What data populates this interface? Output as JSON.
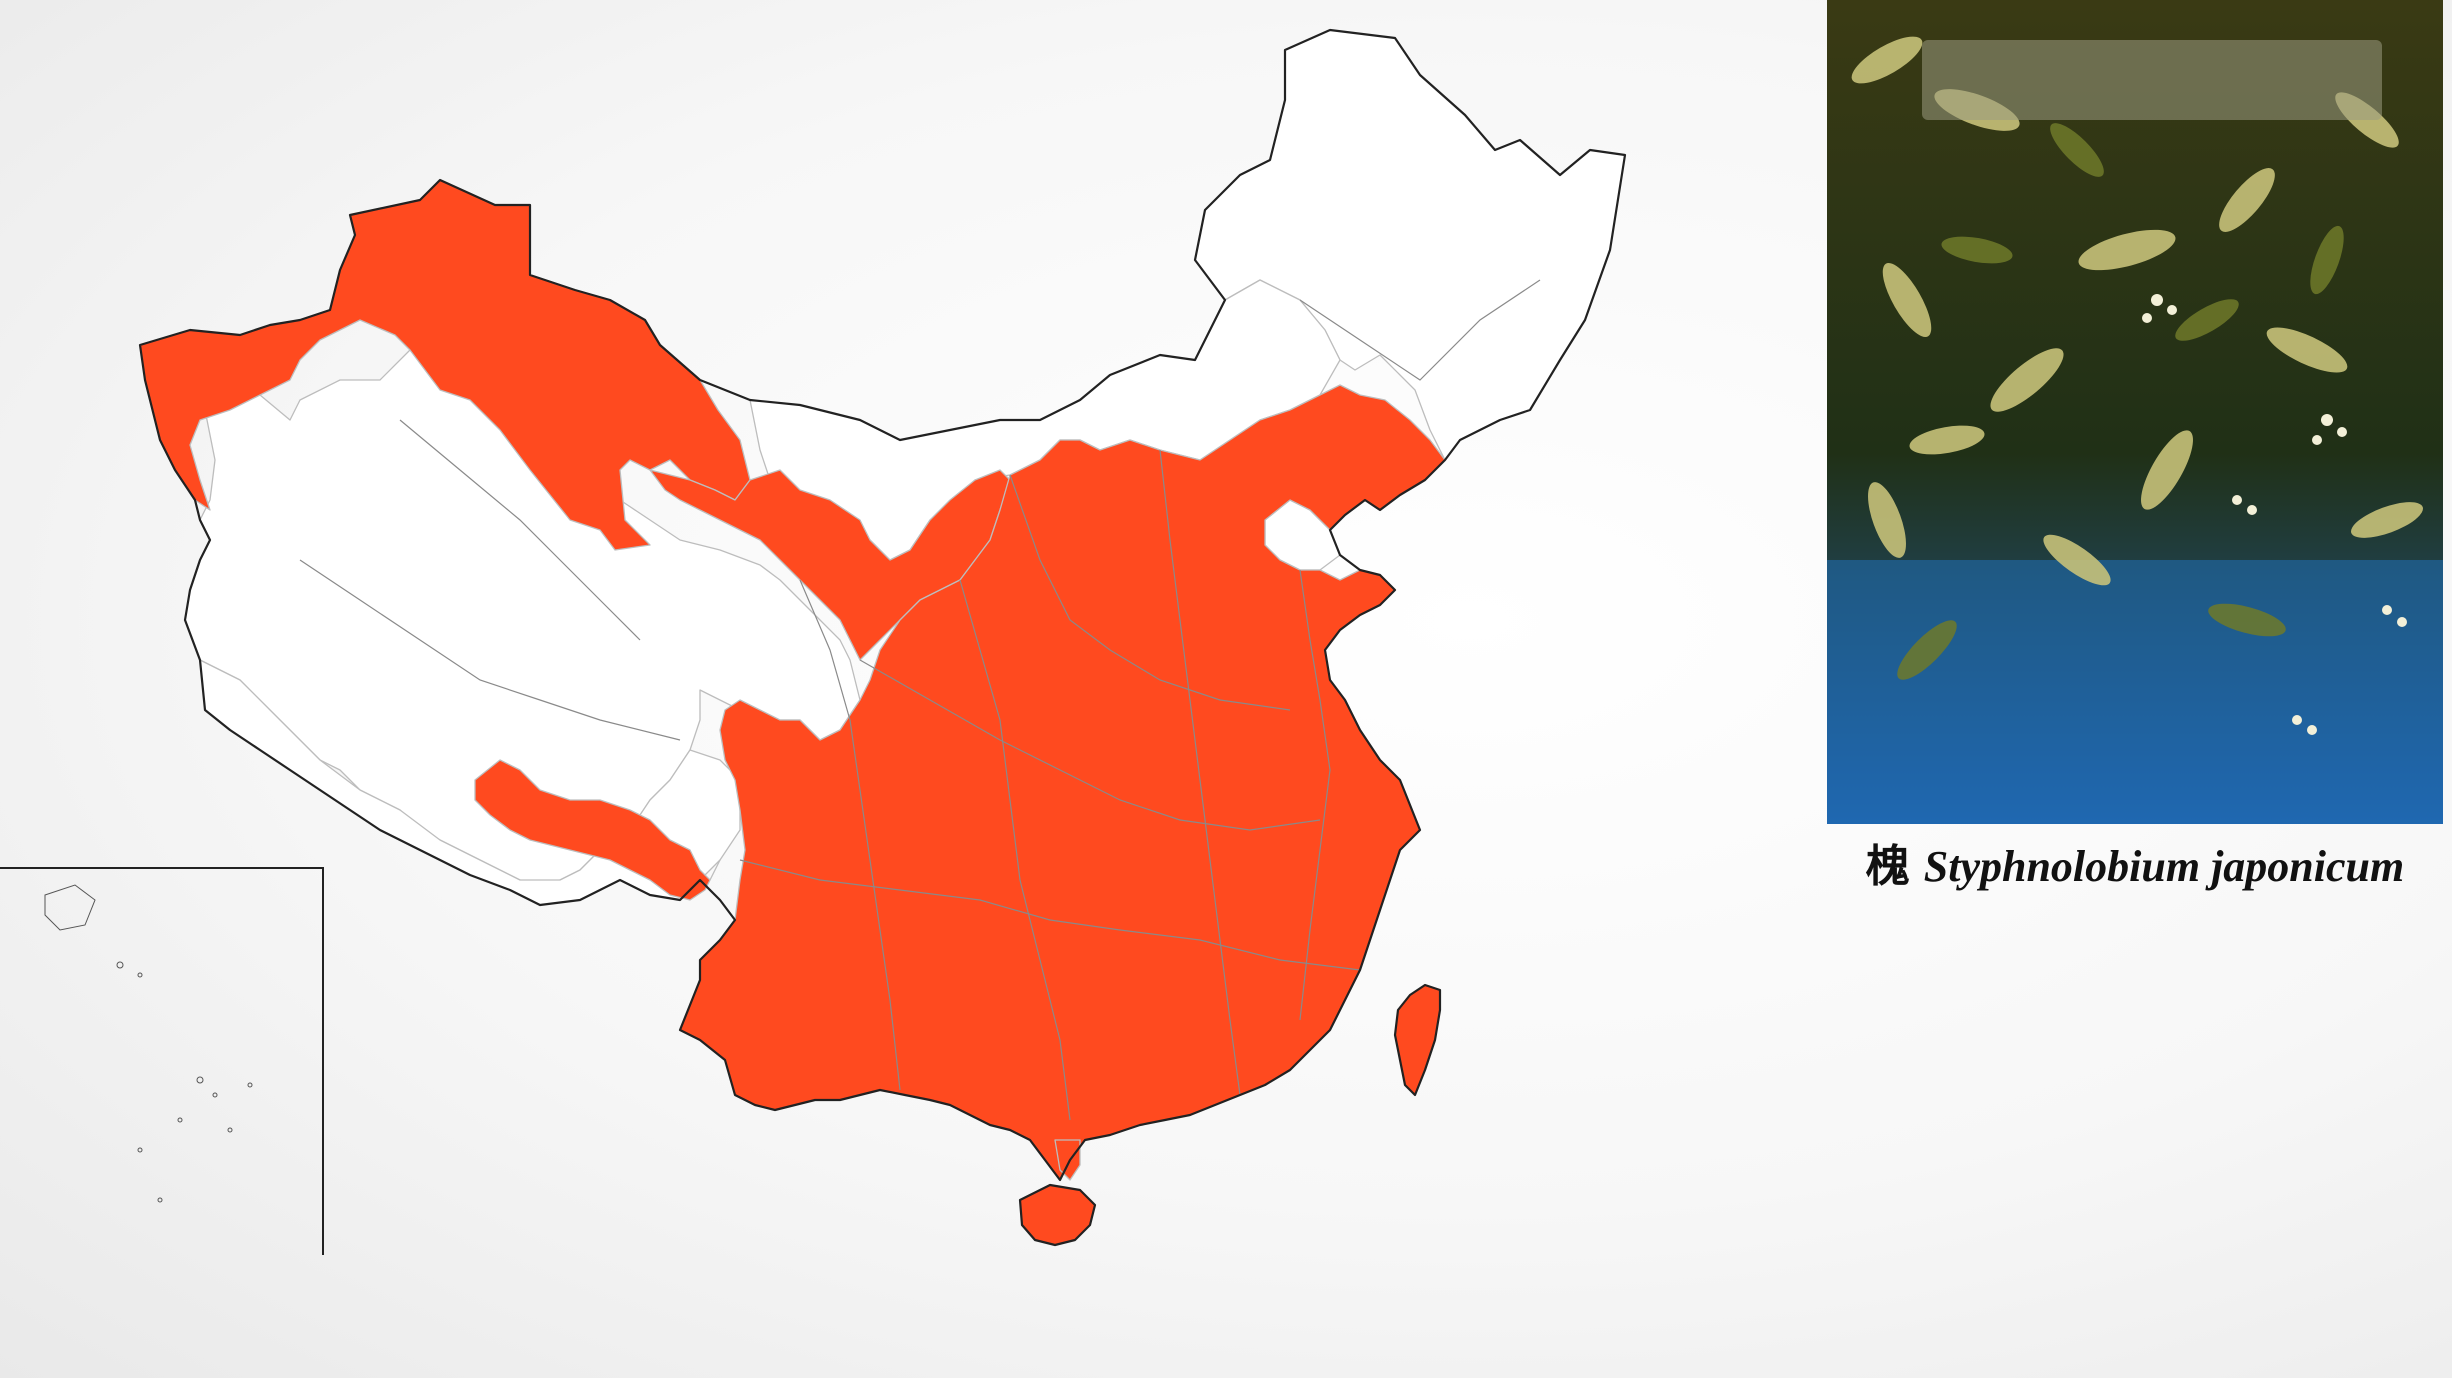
{
  "caption": {
    "chinese_name": "槐",
    "scientific_name": "Styphnolobium japonicum"
  },
  "map": {
    "present_color": "#ff4a1f",
    "absent_color": "#ffffff",
    "border_color": "#222222"
  },
  "photo": {
    "subject": "leafy branches with small flowers at night",
    "leaf_color": "#c8c27a",
    "background_color": "#1f6fb8"
  }
}
